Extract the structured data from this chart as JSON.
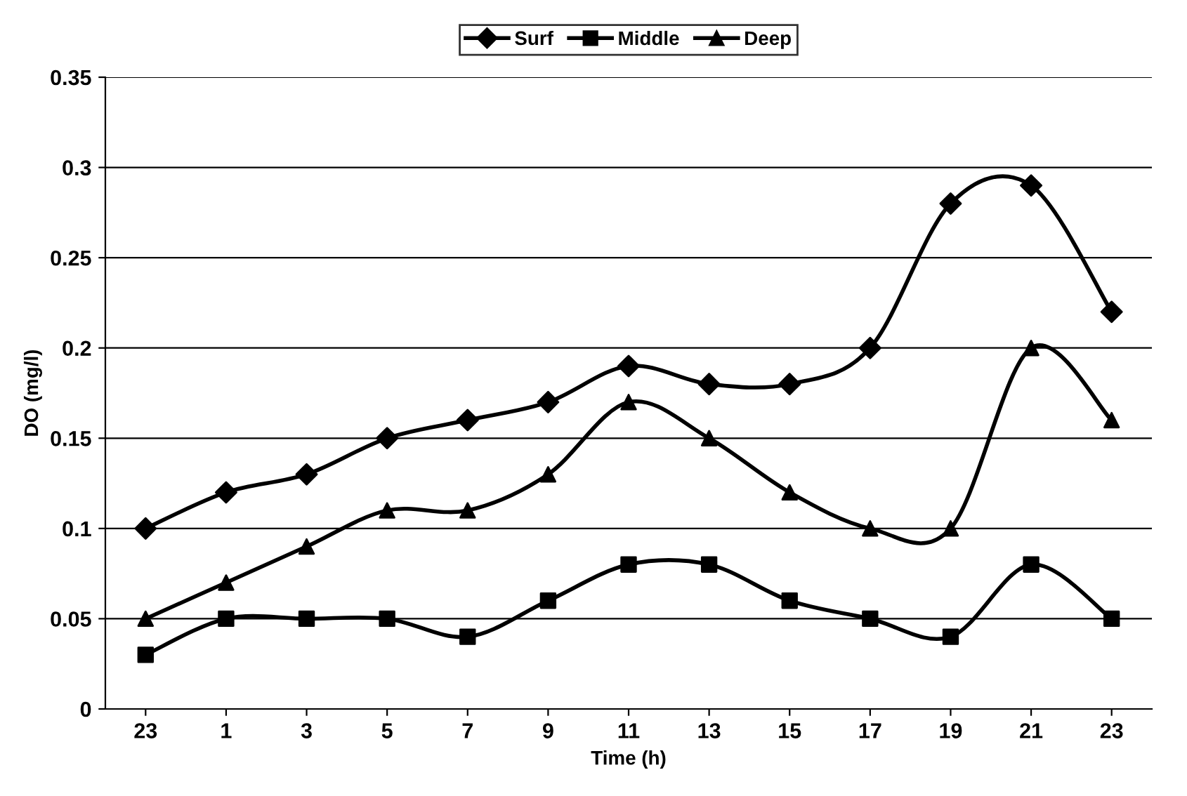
{
  "chart_data": {
    "type": "line",
    "xlabel": "Time (h)",
    "ylabel": "DO (mg/l)",
    "categories": [
      "23",
      "1",
      "3",
      "5",
      "7",
      "9",
      "11",
      "13",
      "15",
      "17",
      "19",
      "21",
      "23"
    ],
    "series": [
      {
        "name": "Surf",
        "color": "#000000",
        "marker": "diamond",
        "values": [
          0.1,
          0.12,
          0.13,
          0.15,
          0.16,
          0.17,
          0.19,
          0.18,
          0.18,
          0.2,
          0.28,
          0.29,
          0.22
        ]
      },
      {
        "name": "Middle",
        "color": "#000000",
        "marker": "square",
        "values": [
          0.03,
          0.05,
          0.05,
          0.05,
          0.04,
          0.06,
          0.08,
          0.08,
          0.06,
          0.05,
          0.04,
          0.08,
          0.05
        ]
      },
      {
        "name": "Deep",
        "color": "#000000",
        "marker": "triangle",
        "values": [
          0.05,
          0.07,
          0.09,
          0.11,
          0.11,
          0.13,
          0.17,
          0.15,
          0.12,
          0.1,
          0.1,
          0.2,
          0.16
        ]
      }
    ],
    "ylim": [
      0,
      0.35
    ],
    "yticks": [
      {
        "value": 0,
        "label": "0"
      },
      0.05,
      0.1,
      0.15,
      0.2,
      0.25,
      0.3,
      0.35
    ],
    "grid": "y",
    "legend": "top",
    "line_style": "solid"
  }
}
